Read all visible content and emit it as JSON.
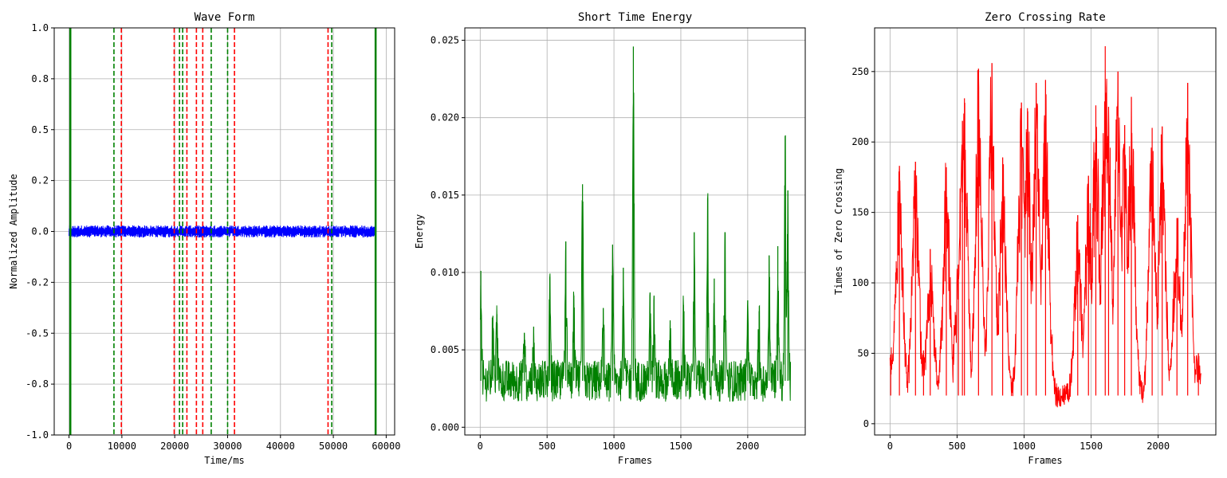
{
  "chart_data": [
    {
      "type": "line",
      "title": "Wave Form",
      "xlabel": "Time/ms",
      "ylabel": "Normalized Amplitude",
      "xlim": [
        -2800,
        61600
      ],
      "ylim": [
        -1.0,
        1.0
      ],
      "grid": true,
      "x_ticks": [
        0,
        10000,
        20000,
        30000,
        40000,
        50000,
        60000
      ],
      "x_tick_labels": [
        "0",
        "10000",
        "20000",
        "30000",
        "40000",
        "50000",
        "60000"
      ],
      "y_ticks": [
        -1.0,
        -0.75,
        -0.5,
        -0.25,
        0.0,
        0.25,
        0.5,
        0.75,
        1.0
      ],
      "y_tick_labels": [
        "-1.0",
        "-0.8",
        "-0.5",
        "-0.2",
        "0.0",
        "0.2",
        "0.5",
        "0.8",
        "1.0"
      ],
      "waveform": {
        "color": "#0000ff",
        "x_range": [
          0,
          58000
        ],
        "amplitude_max": 0.03
      },
      "boundaries": [
        {
          "x": 250,
          "color": "#008000",
          "style": "solid"
        },
        {
          "x": 8500,
          "color": "#008000",
          "style": "dashed"
        },
        {
          "x": 9900,
          "color": "#ff0000",
          "style": "dashed"
        },
        {
          "x": 19900,
          "color": "#ff0000",
          "style": "dashed"
        },
        {
          "x": 20900,
          "color": "#008000",
          "style": "dashed"
        },
        {
          "x": 21500,
          "color": "#008000",
          "style": "dashed"
        },
        {
          "x": 22300,
          "color": "#ff0000",
          "style": "dashed"
        },
        {
          "x": 24100,
          "color": "#ff0000",
          "style": "dashed"
        },
        {
          "x": 25300,
          "color": "#ff0000",
          "style": "dashed"
        },
        {
          "x": 26900,
          "color": "#008000",
          "style": "dashed"
        },
        {
          "x": 30000,
          "color": "#008000",
          "style": "dashed"
        },
        {
          "x": 31300,
          "color": "#ff0000",
          "style": "dashed"
        },
        {
          "x": 49000,
          "color": "#ff0000",
          "style": "dashed"
        },
        {
          "x": 49700,
          "color": "#008000",
          "style": "dashed"
        },
        {
          "x": 58000,
          "color": "#008000",
          "style": "solid"
        }
      ]
    },
    {
      "type": "line",
      "title": "Short Time Energy",
      "xlabel": "Frames",
      "ylabel": "Energy",
      "xlim": [
        -115,
        2430
      ],
      "ylim": [
        -0.0005,
        0.0258
      ],
      "grid": true,
      "color": "#008000",
      "x_ticks": [
        0,
        500,
        1000,
        1500,
        2000
      ],
      "x_tick_labels": [
        "0",
        "500",
        "1000",
        "1500",
        "2000"
      ],
      "y_ticks": [
        0.0,
        0.005,
        0.01,
        0.015,
        0.02,
        0.025
      ],
      "y_tick_labels": [
        "0.000",
        "0.005",
        "0.010",
        "0.015",
        "0.020",
        "0.025"
      ],
      "series": [
        {
          "x_range": [
            0,
            2320
          ],
          "baseline": 0.003,
          "peaks": [
            [
              5,
              0.0101
            ],
            [
              95,
              0.0072
            ],
            [
              125,
              0.0073
            ],
            [
              330,
              0.0061
            ],
            [
              400,
              0.0065
            ],
            [
              520,
              0.0097
            ],
            [
              640,
              0.012
            ],
            [
              700,
              0.0085
            ],
            [
              765,
              0.0157
            ],
            [
              920,
              0.0077
            ],
            [
              990,
              0.0118
            ],
            [
              1070,
              0.0103
            ],
            [
              1145,
              0.0246
            ],
            [
              1270,
              0.0087
            ],
            [
              1300,
              0.0085
            ],
            [
              1420,
              0.0069
            ],
            [
              1520,
              0.0079
            ],
            [
              1600,
              0.0126
            ],
            [
              1700,
              0.0148
            ],
            [
              1750,
              0.0096
            ],
            [
              1830,
              0.0126
            ],
            [
              2000,
              0.0082
            ],
            [
              2085,
              0.0075
            ],
            [
              2160,
              0.0111
            ],
            [
              2225,
              0.0117
            ],
            [
              2280,
              0.0188
            ],
            [
              2300,
              0.0153
            ]
          ]
        }
      ]
    },
    {
      "type": "line",
      "title": "Zero Crossing Rate",
      "xlabel": "Frames",
      "ylabel": "Times of Zero Crossing",
      "xlim": [
        -115,
        2430
      ],
      "ylim": [
        -8,
        281
      ],
      "grid": true,
      "color": "#ff0000",
      "x_ticks": [
        0,
        500,
        1000,
        1500,
        2000
      ],
      "x_tick_labels": [
        "0",
        "500",
        "1000",
        "1500",
        "2000"
      ],
      "y_ticks": [
        0,
        50,
        100,
        150,
        200,
        250
      ],
      "y_tick_labels": [
        "0",
        "50",
        "100",
        "150",
        "200",
        "250"
      ],
      "series": [
        {
          "x_range": [
            0,
            2320
          ],
          "baseline": 20,
          "peaks": [
            [
              5,
              49
            ],
            [
              70,
              183
            ],
            [
              190,
              186
            ],
            [
              250,
              52
            ],
            [
              300,
              124
            ],
            [
              420,
              182
            ],
            [
              510,
              112
            ],
            [
              540,
              215
            ],
            [
              555,
              231
            ],
            [
              660,
              252
            ],
            [
              760,
              256
            ],
            [
              840,
              189
            ],
            [
              980,
              228
            ],
            [
              1025,
              224
            ],
            [
              1090,
              242
            ],
            [
              1160,
              244
            ],
            [
              1400,
              148
            ],
            [
              1480,
              176
            ],
            [
              1535,
              226
            ],
            [
              1605,
              268
            ],
            [
              1630,
              225
            ],
            [
              1700,
              250
            ],
            [
              1750,
              212
            ],
            [
              1800,
              232
            ],
            [
              1955,
              210
            ],
            [
              2030,
              211
            ],
            [
              2140,
              146
            ],
            [
              2220,
              242
            ],
            [
              2300,
              50
            ]
          ]
        }
      ]
    }
  ]
}
